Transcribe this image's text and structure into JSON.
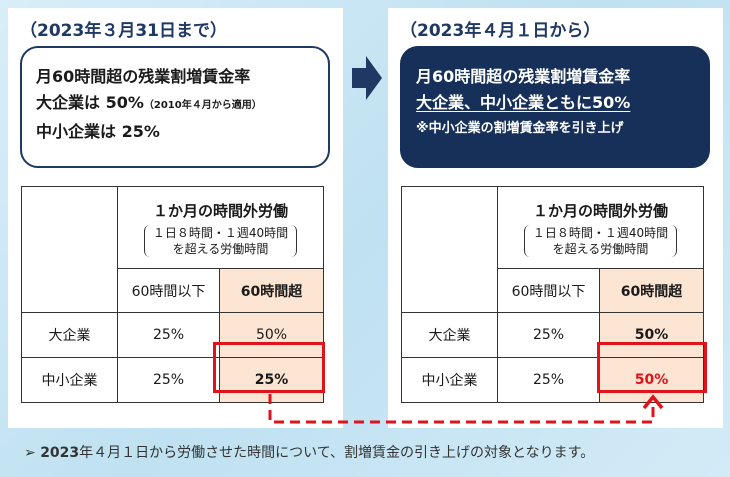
{
  "left": {
    "period": "（2023年３月31日まで）",
    "rule_lines": [
      "月60時間超の残業割増賃金率",
      "大企業は 50%",
      "（2010年４月から適用）",
      "中小企業は 25%"
    ],
    "table": {
      "header_title": "１か月の時間外労働",
      "header_sub_1": "１日８時間・１週40時間",
      "header_sub_2": "を超える労働時間",
      "col_1": "60時間以下",
      "col_2": "60時間超",
      "rows": [
        {
          "label": "大企業",
          "v1": "25%",
          "v2": "50%"
        },
        {
          "label": "中小企業",
          "v1": "25%",
          "v2": "25%"
        }
      ]
    }
  },
  "right": {
    "period": "（2023年４月１日から）",
    "rule_lines": [
      "月60時間超の残業割増賃金率",
      "大企業、中小企業ともに50%",
      "※中小企業の割増賃金率を引き上げ"
    ],
    "table": {
      "header_title": "１か月の時間外労働",
      "header_sub_1": "１日８時間・１週40時間",
      "header_sub_2": "を超える労働時間",
      "col_1": "60時間以下",
      "col_2": "60時間超",
      "rows": [
        {
          "label": "大企業",
          "v1": "25%",
          "v2": "50%"
        },
        {
          "label": "中小企業",
          "v1": "25%",
          "v2": "50%"
        }
      ]
    }
  },
  "footnote": {
    "bullet": "➢",
    "year": "2023",
    "text": "年４月１日から労働させた時間について、割増賃金の引き上げの対象となります。"
  },
  "colors": {
    "navy": "#16305a",
    "highlight": "#fde5d3",
    "red": "#e0121b"
  }
}
